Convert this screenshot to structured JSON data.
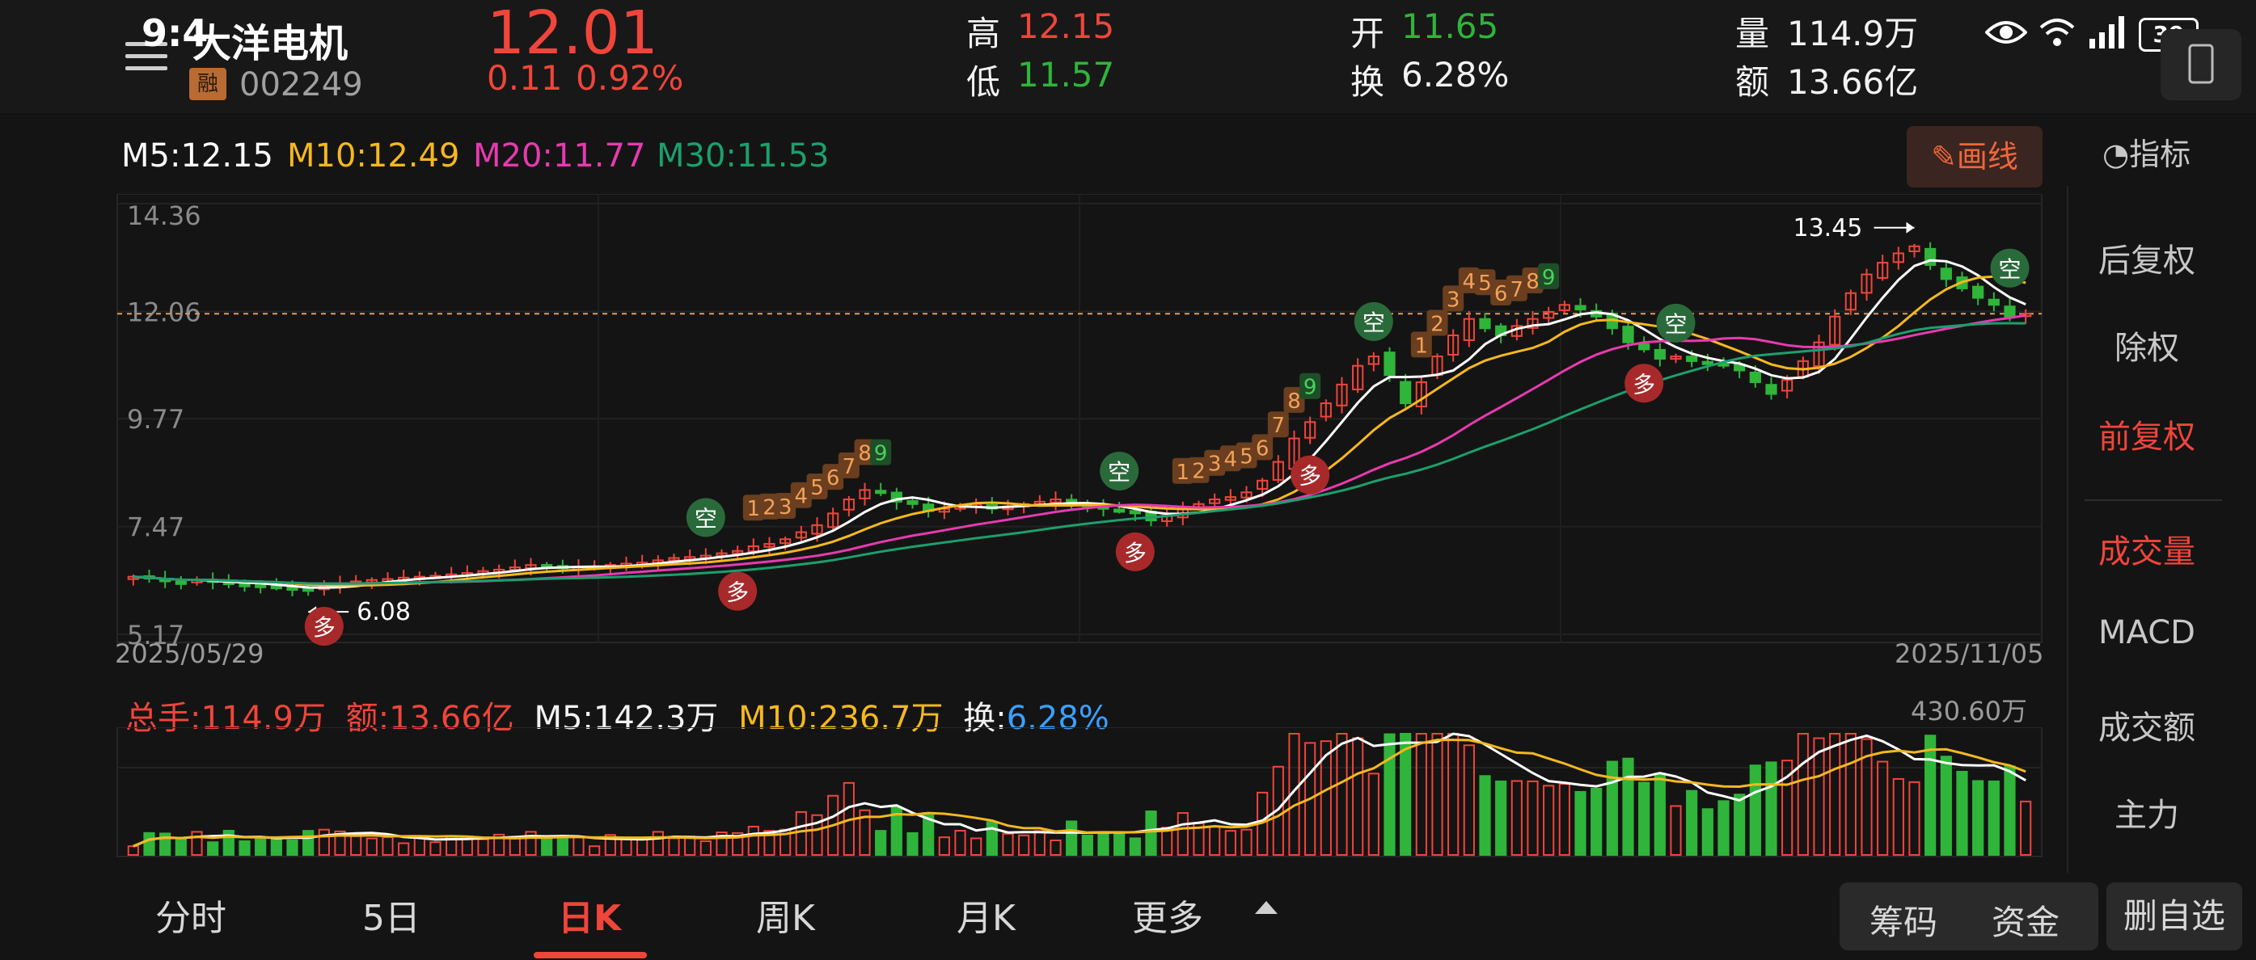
{
  "status_bar": {
    "time": "9:4",
    "battery": "39"
  },
  "stock": {
    "name": "大洋电机",
    "code": "002249",
    "margin_badge": "融",
    "price": "12.01",
    "change": "0.11",
    "change_pct": "0.92%"
  },
  "quote": {
    "high_label": "高",
    "high": "12.15",
    "low_label": "低",
    "low": "11.57",
    "open_label": "开",
    "open": "11.65",
    "turnover_label": "换",
    "turnover": "6.28%",
    "volume_label": "量",
    "volume": "114.9万",
    "amount_label": "额",
    "amount": "13.66亿"
  },
  "ma_legend": {
    "m5": "M5:12.15",
    "m10": "M10:12.49",
    "m20": "M20:11.77",
    "m30": "M30:11.53"
  },
  "draw_button": "画线",
  "indicator_button": "指标",
  "chart_data": {
    "type": "candlestick",
    "y_ticks": [
      "14.36",
      "12.06",
      "9.77",
      "7.47",
      "5.17"
    ],
    "ylim": [
      5.17,
      14.36
    ],
    "current_price_line": 12.01,
    "date_start": "2025/05/29",
    "date_end": "2025/11/05",
    "annotations": {
      "max_label": "13.45",
      "min_label": "6.08"
    },
    "signals": {
      "buy": "多",
      "sell": "空",
      "td": [
        "1",
        "2",
        "3",
        "4",
        "5",
        "6",
        "7",
        "8",
        "9"
      ]
    },
    "approx_close_series": [
      6.4,
      6.36,
      6.3,
      6.28,
      6.33,
      6.3,
      6.25,
      6.22,
      6.2,
      6.18,
      6.15,
      6.1,
      6.2,
      6.25,
      6.3,
      6.33,
      6.35,
      6.38,
      6.4,
      6.42,
      6.45,
      6.48,
      6.52,
      6.55,
      6.6,
      6.65,
      6.62,
      6.58,
      6.6,
      6.62,
      6.65,
      6.68,
      6.7,
      6.75,
      6.8,
      6.82,
      6.85,
      6.9,
      6.95,
      7.05,
      7.1,
      7.2,
      7.35,
      7.5,
      7.75,
      8.05,
      8.25,
      8.2,
      8.0,
      7.95,
      7.8,
      7.85,
      7.9,
      7.95,
      7.85,
      7.9,
      7.95,
      8.0,
      8.05,
      7.95,
      7.9,
      7.85,
      7.8,
      7.75,
      7.6,
      7.7,
      7.85,
      7.95,
      8.05,
      8.1,
      8.2,
      8.45,
      8.85,
      9.35,
      9.7,
      10.1,
      10.5,
      10.9,
      11.1,
      10.7,
      10.1,
      10.55,
      11.1,
      11.55,
      11.9,
      11.7,
      11.55,
      11.75,
      11.9,
      12.05,
      12.2,
      12.1,
      11.95,
      11.7,
      11.4,
      11.25,
      11.05,
      11.1,
      11.0,
      10.95,
      10.9,
      10.8,
      10.55,
      10.3,
      10.6,
      11.0,
      11.4,
      11.95,
      12.45,
      12.85,
      13.1,
      13.3,
      13.45,
      13.05,
      12.75,
      12.55,
      12.35,
      12.2,
      11.95,
      12.01
    ]
  },
  "volume_panel": {
    "total_label": "总手:114.9万",
    "amount_label": "额:13.66亿",
    "m5_label": "M5:142.3万",
    "m10_label": "M10:236.7万",
    "turnover_text": "换:",
    "turnover_value": "6.28%",
    "max_label": "430.60万"
  },
  "sidebar": {
    "items": [
      "后复权",
      "除权",
      "前复权",
      "成交量",
      "MACD",
      "成交额",
      "主力"
    ]
  },
  "bottom_tabs": [
    "分时",
    "5日",
    "日K",
    "周K",
    "月K",
    "更多"
  ],
  "bottom_buttons": {
    "chips": "筹码",
    "funds": "资金",
    "remove": "删自选"
  },
  "colors": {
    "up": "#f0453a",
    "down": "#2fb53a",
    "m5": "#ffffff",
    "m10": "#f5b81e",
    "m20": "#e83ab0",
    "m30": "#1c9f6d"
  }
}
